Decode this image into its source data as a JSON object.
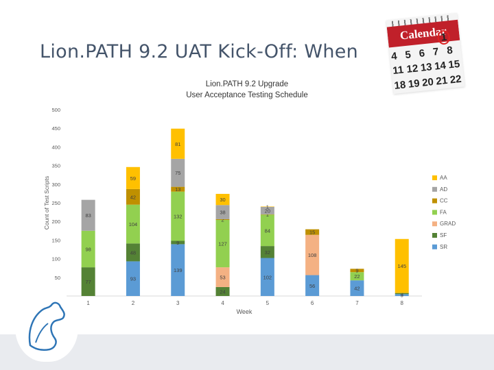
{
  "slide": {
    "title": "Lion.PATH 9.2 UAT Kick-Off: When"
  },
  "calendar": {
    "label": "Calendar",
    "days": [
      "4",
      "5",
      "6",
      "7",
      "8",
      "11",
      "12",
      "13",
      "14",
      "15",
      "18",
      "19",
      "20",
      "21",
      "22"
    ],
    "circled_day": "1",
    "accent": "#c0202a"
  },
  "logo": {
    "icon": "nittany-lion-icon"
  },
  "chart_data": {
    "type": "bar",
    "stacked": true,
    "title": [
      "Lion.PATH 9.2 Upgrade",
      "User Acceptance Testing Schedule"
    ],
    "xlabel": "Week",
    "ylabel": "Count of Test Scripts",
    "categories": [
      "1",
      "2",
      "3",
      "4",
      "5",
      "6",
      "7",
      "8"
    ],
    "ylim": [
      0,
      500
    ],
    "yticks": [
      0,
      50,
      100,
      150,
      200,
      250,
      300,
      350,
      400,
      450,
      500
    ],
    "legend_position": "right",
    "series": [
      {
        "name": "SR",
        "color": "#5b9bd5",
        "values": [
          null,
          93,
          139,
          null,
          102,
          56,
          42,
          5
        ]
      },
      {
        "name": "SF",
        "color": "#548235",
        "values": [
          77,
          48,
          9,
          24,
          32,
          null,
          null,
          3
        ]
      },
      {
        "name": "GRAD",
        "color": "#f4b183",
        "values": [
          null,
          null,
          null,
          53,
          null,
          108,
          null,
          null
        ]
      },
      {
        "name": "FA",
        "color": "#92d050",
        "values": [
          98,
          104,
          132,
          127,
          84,
          null,
          22,
          null
        ]
      },
      {
        "name": "CC",
        "color": "#bf9000",
        "values": [
          null,
          42,
          13,
          2,
          1,
          15,
          9,
          null
        ]
      },
      {
        "name": "AD",
        "color": "#a5a5a5",
        "values": [
          83,
          null,
          75,
          38,
          20,
          null,
          null,
          null
        ]
      },
      {
        "name": "AA",
        "color": "#ffc000",
        "values": [
          null,
          59,
          81,
          30,
          1,
          null,
          null,
          145
        ]
      }
    ]
  }
}
